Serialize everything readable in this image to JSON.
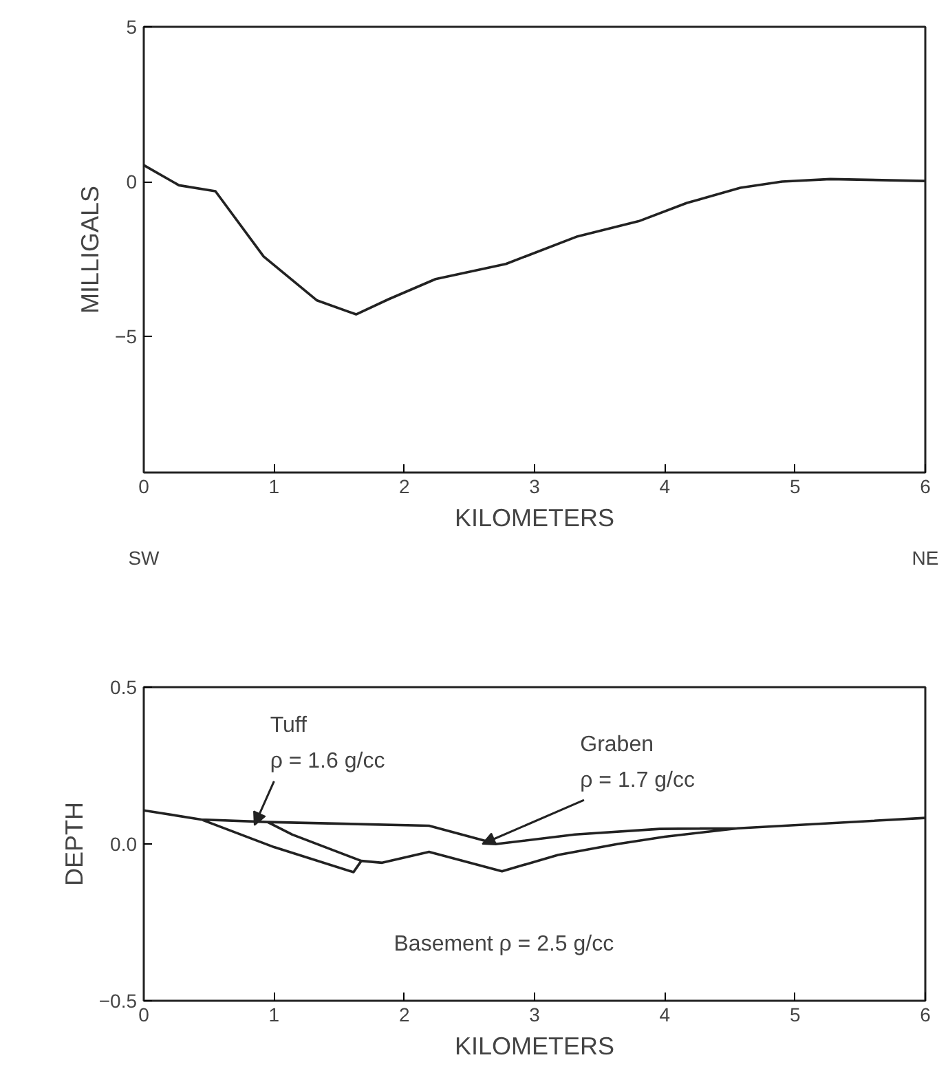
{
  "chart_data": [
    {
      "type": "line",
      "xlabel": "KILOMETERS",
      "ylabel": "MILLIGALS",
      "xlim": [
        0,
        6
      ],
      "xticks": [
        0,
        1,
        2,
        3,
        4,
        5,
        6
      ],
      "ylim": [
        -9.4,
        5
      ],
      "yticks": [
        -5,
        0,
        5
      ],
      "grid": false,
      "annotations": [
        "SW",
        "NE"
      ],
      "series": [
        {
          "color": "#222222",
          "x": [
            0,
            0.27,
            0.55,
            0.92,
            1.33,
            1.63,
            1.88,
            2.24,
            2.78,
            3.33,
            3.8,
            4.17,
            4.58,
            4.9,
            5.27,
            6
          ],
          "values": [
            0.53,
            -0.12,
            -0.31,
            -2.42,
            -3.84,
            -4.29,
            -3.8,
            -3.15,
            -2.66,
            -1.77,
            -1.28,
            -0.69,
            -0.2,
            0,
            0.08,
            0.02
          ]
        }
      ]
    },
    {
      "type": "line",
      "xlabel": "KILOMETERS",
      "ylabel": "DEPTH",
      "xlim": [
        0,
        6
      ],
      "xticks": [
        0,
        1,
        2,
        3,
        4,
        5,
        6
      ],
      "ylim": [
        -0.5,
        0.5
      ],
      "yticks": [
        {
          "value": -0.5,
          "label": "−0.5"
        },
        {
          "value": 0,
          "label": "0.0"
        },
        {
          "value": 0.5,
          "label": "0.5"
        }
      ],
      "grid": false,
      "annotations": [
        {
          "text": "Tuff\nρ = 1.6 g/cc",
          "x": 0.85,
          "y": 0.06
        },
        {
          "text": "Graben\nρ = 1.7 g/cc",
          "x": 2.6,
          "y": 0.0
        },
        "Basement   ρ = 2.5 g/cc"
      ],
      "series": [
        {
          "color": "#222222",
          "x": [
            0,
            0.44,
            0.95,
            1.14,
            1.67,
            1.61,
            1.0,
            0.44,
            0.95,
            2.19,
            2.71,
            3.31,
            3.96,
            4.56,
            4.0,
            3.64,
            3.18,
            2.75,
            2.19,
            1.83,
            1.67,
            1.83,
            2.19,
            2.75,
            3.18,
            3.64,
            4.0,
            4.56,
            6
          ],
          "values": [
            0.107,
            0.078,
            0.07,
            0.03,
            -0.054,
            -0.09,
            -0.01,
            0.078,
            0.07,
            0.058,
            0.0,
            0.03,
            0.048,
            0.05,
            0.023,
            0.0,
            -0.035,
            -0.087,
            -0.025,
            -0.06,
            -0.054,
            -0.06,
            -0.025,
            -0.087,
            -0.035,
            0.0,
            0.023,
            0.05,
            0.083
          ]
        }
      ]
    }
  ]
}
